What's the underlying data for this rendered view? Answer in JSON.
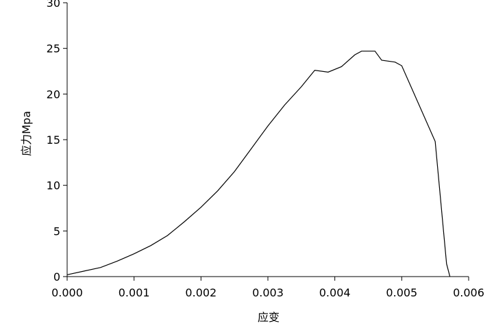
{
  "chart_data": {
    "type": "line",
    "xlabel": "应变",
    "ylabel": "应力Mpa",
    "x": [
      0,
      0.00025,
      0.0005,
      0.00075,
      0.001,
      0.00125,
      0.0015,
      0.00175,
      0.002,
      0.00225,
      0.0025,
      0.00275,
      0.003,
      0.00325,
      0.0035,
      0.0037,
      0.0039,
      0.0041,
      0.0043,
      0.0044,
      0.0046,
      0.0047,
      0.0049,
      0.005,
      0.0055,
      0.00567,
      0.00572
    ],
    "series": [
      {
        "color": "#000000",
        "values": [
          0.2,
          0.6,
          1.0,
          1.7,
          2.5,
          3.4,
          4.5,
          6.0,
          7.6,
          9.4,
          11.5,
          14.0,
          16.5,
          18.8,
          20.8,
          22.6,
          22.4,
          23.0,
          24.3,
          24.7,
          24.7,
          23.7,
          23.5,
          23.1,
          14.8,
          1.4,
          0
        ]
      }
    ],
    "xlim": [
      0,
      0.006
    ],
    "xticks": [
      {
        "value": 0,
        "label": "0.000"
      },
      0.001,
      0.002,
      0.003,
      0.004,
      0.005,
      0.006
    ],
    "ylim": [
      0,
      30
    ],
    "yticks": [
      0,
      5,
      10,
      15,
      20,
      25,
      30
    ]
  }
}
